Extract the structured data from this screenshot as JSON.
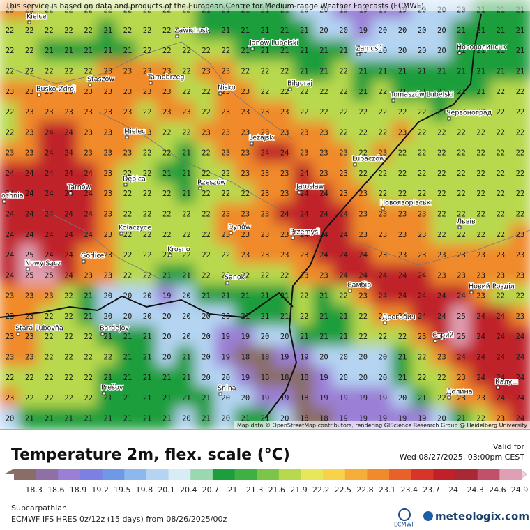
{
  "header": {
    "notice": "This service is based on data and products of the European Centre for Medium-range Weather Forecasts (ECMWF)"
  },
  "map": {
    "attribution": "Map data © OpenStreetMap contributors, rendering GIScience Research Group @ Heidelberg University",
    "places": [
      "Kielce",
      "Zawichost",
      "Janów Lubelski",
      "Zamość",
      "Нововолинськ",
      "Staszów",
      "Tarnobrzeg",
      "Nisko",
      "Biłgoraj",
      "Busko-Zdrój",
      "Tomaszów Lubelski",
      "Червоноград",
      "Mielec",
      "Leżajsk",
      "Lubaczów",
      "Dębica",
      "Rzeszów",
      "Tarnów",
      "ochnia",
      "Jarosław",
      "Новояворівськ",
      "Львів",
      "Kołaczyce",
      "Dynów",
      "Przemyśl",
      "Krosno",
      "Gorlice",
      "Nowy Sącz",
      "Sanok",
      "Самбір",
      "Новий Розділ",
      "Stará Ľubovňa",
      "Bardejov",
      "Дрогобич",
      "Стрий",
      "Prešov",
      "Snina",
      "Долина",
      "Калуш"
    ],
    "grid": [
      [
        23,
        23,
        22,
        22,
        22,
        22,
        22,
        22,
        22,
        22,
        21,
        21,
        21,
        21,
        21,
        20,
        20,
        19,
        19,
        19,
        19,
        20,
        20,
        20,
        21,
        21,
        21
      ],
      [
        22,
        22,
        22,
        22,
        22,
        21,
        22,
        22,
        22,
        22,
        21,
        21,
        21,
        21,
        21,
        21,
        20,
        20,
        19,
        20,
        20,
        20,
        20,
        21,
        21,
        21,
        21
      ],
      [
        22,
        22,
        21,
        21,
        21,
        21,
        21,
        22,
        22,
        22,
        22,
        22,
        21,
        21,
        21,
        21,
        21,
        21,
        20,
        20,
        20,
        20,
        20,
        21,
        21,
        21,
        21
      ],
      [
        22,
        22,
        22,
        22,
        22,
        23,
        23,
        23,
        23,
        22,
        23,
        23,
        22,
        22,
        22,
        21,
        21,
        22,
        21,
        21,
        21,
        21,
        21,
        21,
        21,
        21,
        21
      ],
      [
        23,
        23,
        23,
        23,
        23,
        23,
        23,
        23,
        23,
        22,
        22,
        23,
        23,
        22,
        22,
        22,
        22,
        22,
        21,
        22,
        21,
        21,
        21,
        21,
        21,
        22,
        22
      ],
      [
        22,
        23,
        23,
        23,
        23,
        23,
        23,
        22,
        23,
        23,
        22,
        23,
        23,
        23,
        23,
        22,
        22,
        22,
        22,
        22,
        22,
        22,
        21,
        22,
        22,
        22,
        22
      ],
      [
        22,
        23,
        24,
        24,
        23,
        23,
        23,
        23,
        22,
        22,
        23,
        23,
        23,
        23,
        23,
        23,
        23,
        22,
        22,
        22,
        23,
        22,
        22,
        22,
        22,
        22,
        22
      ],
      [
        23,
        23,
        24,
        24,
        23,
        23,
        23,
        22,
        22,
        21,
        22,
        23,
        23,
        24,
        24,
        23,
        23,
        23,
        22,
        23,
        22,
        22,
        22,
        22,
        22,
        22,
        22
      ],
      [
        24,
        24,
        24,
        24,
        24,
        23,
        22,
        22,
        21,
        21,
        22,
        22,
        23,
        23,
        23,
        24,
        23,
        23,
        22,
        22,
        22,
        22,
        22,
        22,
        22,
        22,
        22
      ],
      [
        24,
        24,
        24,
        24,
        24,
        23,
        22,
        22,
        22,
        21,
        22,
        22,
        22,
        23,
        23,
        24,
        24,
        23,
        23,
        22,
        22,
        22,
        22,
        22,
        22,
        22,
        22
      ],
      [
        24,
        24,
        24,
        24,
        24,
        23,
        22,
        22,
        22,
        22,
        22,
        23,
        23,
        23,
        24,
        24,
        24,
        24,
        23,
        23,
        23,
        23,
        22,
        22,
        22,
        22,
        22
      ],
      [
        24,
        24,
        24,
        24,
        24,
        23,
        22,
        22,
        22,
        22,
        22,
        23,
        23,
        23,
        23,
        24,
        24,
        24,
        23,
        23,
        23,
        23,
        22,
        22,
        22,
        22,
        23
      ],
      [
        24,
        25,
        24,
        24,
        23,
        23,
        22,
        22,
        22,
        22,
        22,
        22,
        23,
        23,
        23,
        23,
        24,
        24,
        24,
        23,
        23,
        23,
        23,
        23,
        23,
        23,
        23
      ],
      [
        24,
        25,
        25,
        24,
        23,
        23,
        22,
        22,
        21,
        21,
        22,
        22,
        22,
        22,
        22,
        23,
        23,
        24,
        24,
        24,
        24,
        24,
        23,
        23,
        23,
        23,
        23
      ],
      [
        23,
        23,
        23,
        22,
        21,
        20,
        20,
        20,
        19,
        20,
        21,
        21,
        21,
        21,
        21,
        22,
        21,
        22,
        23,
        24,
        24,
        24,
        24,
        24,
        23,
        22,
        22
      ],
      [
        23,
        23,
        22,
        22,
        21,
        20,
        20,
        20,
        20,
        20,
        20,
        20,
        21,
        21,
        21,
        22,
        21,
        21,
        22,
        23,
        23,
        24,
        24,
        25,
        24,
        24,
        23
      ],
      [
        23,
        23,
        22,
        22,
        22,
        21,
        21,
        21,
        20,
        20,
        20,
        19,
        19,
        20,
        20,
        21,
        21,
        21,
        22,
        22,
        22,
        23,
        24,
        25,
        24,
        24,
        24
      ],
      [
        23,
        23,
        22,
        22,
        22,
        22,
        21,
        21,
        20,
        21,
        20,
        19,
        18,
        18,
        19,
        19,
        20,
        20,
        20,
        20,
        21,
        22,
        23,
        24,
        24,
        24,
        24
      ],
      [
        22,
        22,
        22,
        22,
        22,
        21,
        21,
        21,
        21,
        21,
        20,
        20,
        19,
        18,
        18,
        18,
        19,
        20,
        20,
        20,
        21,
        22,
        22,
        23,
        24,
        24,
        24
      ],
      [
        23,
        22,
        22,
        22,
        22,
        21,
        21,
        21,
        21,
        21,
        21,
        20,
        20,
        19,
        19,
        18,
        19,
        19,
        19,
        19,
        20,
        21,
        22,
        23,
        23,
        24,
        24
      ],
      [
        20,
        21,
        21,
        21,
        21,
        21,
        21,
        21,
        21,
        20,
        21,
        20,
        21,
        21,
        20,
        18,
        18,
        19,
        19,
        19,
        19,
        19,
        20,
        21,
        22,
        23,
        24
      ]
    ]
  },
  "legend": {
    "title": "Temperature 2m, flex. scale (°C)",
    "valid_label": "Valid for",
    "valid_time": "Wed 08/27/2025, 03:00pm CEST",
    "ticks": [
      18.3,
      18.6,
      18.9,
      19.2,
      19.5,
      19.8,
      20.1,
      20.4,
      20.7,
      21,
      21.3,
      21.6,
      21.9,
      22.2,
      22.5,
      22.8,
      23.1,
      23.4,
      23.7,
      24,
      24.3,
      24.6,
      24.9
    ],
    "colors": [
      "#8a6d66",
      "#8e6fa6",
      "#9b7fd6",
      "#7b80e2",
      "#6f98e6",
      "#8db8ee",
      "#b4d4f2",
      "#d8ecf6",
      "#9ad8b0",
      "#1d9e3c",
      "#3fb044",
      "#7cc44a",
      "#b8d94e",
      "#e8e65a",
      "#f7d24a",
      "#f5ae3a",
      "#f08a2a",
      "#e8602a",
      "#d8352a",
      "#c0202a",
      "#a82835",
      "#c2506a",
      "#e0a0b4"
    ]
  },
  "footer": {
    "region": "Subcarpathian",
    "model": "ECMWF IFS HRES 0z/12z (15 days) from 08/26/2025/00z",
    "ecmwf": "ECMWF",
    "brand": "meteologix.com"
  }
}
